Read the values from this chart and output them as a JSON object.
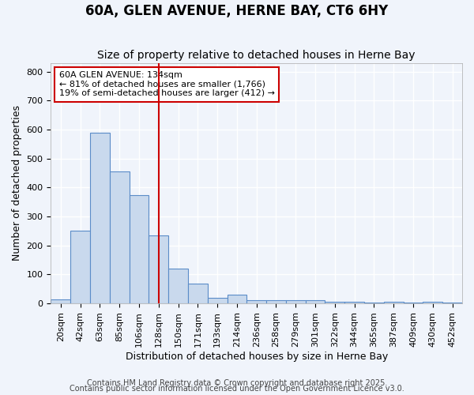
{
  "title": "60A, GLEN AVENUE, HERNE BAY, CT6 6HY",
  "subtitle": "Size of property relative to detached houses in Herne Bay",
  "xlabel": "Distribution of detached houses by size in Herne Bay",
  "ylabel": "Number of detached properties",
  "categories": [
    "20sqm",
    "42sqm",
    "63sqm",
    "85sqm",
    "106sqm",
    "128sqm",
    "150sqm",
    "171sqm",
    "193sqm",
    "214sqm",
    "236sqm",
    "258sqm",
    "279sqm",
    "301sqm",
    "322sqm",
    "344sqm",
    "365sqm",
    "387sqm",
    "409sqm",
    "430sqm",
    "452sqm"
  ],
  "values": [
    15,
    250,
    590,
    455,
    375,
    235,
    120,
    68,
    20,
    30,
    12,
    12,
    10,
    10,
    5,
    5,
    3,
    5,
    3,
    5,
    3
  ],
  "bar_color": "#c9d9ed",
  "bar_edge_color": "#5b8cc8",
  "bg_color": "#f0f4fb",
  "plot_bg_color": "#f0f4fb",
  "grid_color": "#ffffff",
  "vline_color": "#cc0000",
  "vline_x_index": 5,
  "annotation_text": "60A GLEN AVENUE: 134sqm\n← 81% of detached houses are smaller (1,766)\n19% of semi-detached houses are larger (412) →",
  "annotation_box_edgecolor": "#cc0000",
  "ylim": [
    0,
    830
  ],
  "yticks": [
    0,
    100,
    200,
    300,
    400,
    500,
    600,
    700,
    800
  ],
  "footer1": "Contains HM Land Registry data © Crown copyright and database right 2025.",
  "footer2": "Contains public sector information licensed under the Open Government Licence v3.0.",
  "title_fontsize": 12,
  "subtitle_fontsize": 10,
  "ylabel_fontsize": 9,
  "xlabel_fontsize": 9,
  "tick_fontsize": 8,
  "annotation_fontsize": 8,
  "footer_fontsize": 7
}
